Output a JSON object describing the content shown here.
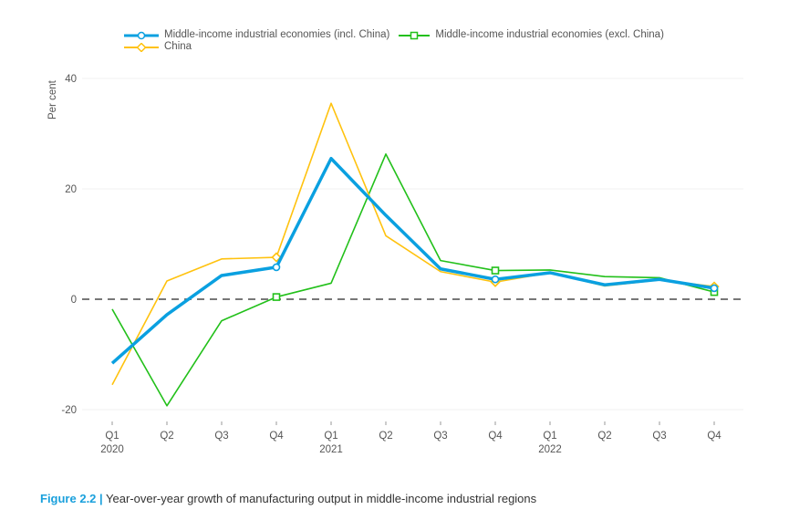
{
  "chart_data": {
    "type": "line",
    "title": "",
    "ylabel": "Per cent",
    "xlabel": "",
    "ylim": [
      -20,
      40
    ],
    "yticks": [
      -20,
      0,
      20,
      40
    ],
    "categories": [
      "Q1",
      "Q2",
      "Q3",
      "Q4",
      "Q1",
      "Q2",
      "Q3",
      "Q4",
      "Q1",
      "Q2",
      "Q3",
      "Q4"
    ],
    "year_labels": [
      {
        "index": 0,
        "label": "2020"
      },
      {
        "index": 4,
        "label": "2021"
      },
      {
        "index": 8,
        "label": "2022"
      }
    ],
    "reference_line": 0,
    "legend_position": "top",
    "series": [
      {
        "name": "Middle-income industrial economies (incl. China)",
        "color": "#0aa0e0",
        "marker": "circle",
        "width": 3.5,
        "values": [
          -11.6,
          -2.8,
          4.3,
          5.8,
          25.5,
          15.2,
          5.5,
          3.6,
          4.8,
          2.6,
          3.6,
          2.0
        ]
      },
      {
        "name": "Middle-income industrial economies (excl. China)",
        "color": "#22c01a",
        "marker": "square",
        "width": 1.6,
        "values": [
          -1.8,
          -19.3,
          -3.9,
          0.4,
          2.9,
          26.3,
          7.0,
          5.2,
          5.3,
          4.1,
          3.9,
          1.3
        ]
      },
      {
        "name": "China",
        "color": "#ffc20e",
        "marker": "diamond",
        "width": 1.6,
        "values": [
          -15.5,
          3.3,
          7.3,
          7.6,
          35.5,
          11.5,
          5.0,
          3.1,
          4.8,
          2.4,
          3.5,
          2.3
        ]
      }
    ],
    "marker_indices": [
      3,
      7,
      11
    ]
  },
  "caption": {
    "figure": "Figure 2.2 |",
    "text": "Year-over-year growth of manufacturing output in middle-income industrial regions"
  }
}
